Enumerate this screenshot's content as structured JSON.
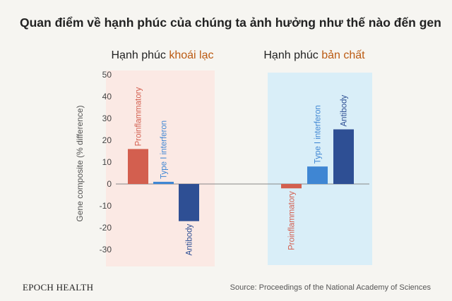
{
  "title": "Quan điểm về hạnh phúc của chúng ta ảnh hưởng như thế nào đến gen",
  "colors": {
    "proinflammatory": "#d35f4f",
    "type_i_interferon": "#3f86d3",
    "antibody": "#2e4f94",
    "hedonic_accent": "#bb5a12",
    "panel_hedonic": "#fbe9e4",
    "panel_eudaimonic": "#d9eef8"
  },
  "chart_data": {
    "type": "bar",
    "ylabel": "Gene composite (% difference)",
    "ylim": [
      -35,
      50
    ],
    "yticks": [
      50,
      40,
      30,
      20,
      10,
      0,
      -10,
      -20,
      -30
    ],
    "grid": false,
    "groups": [
      {
        "label_prefix": "Hạnh phúc",
        "label_accent": "khoái lạc",
        "panel": "hedonic",
        "bars": [
          {
            "name": "Proinflammatory",
            "value": 16,
            "color_key": "proinflammatory"
          },
          {
            "name": "Type I interferon",
            "value": 1,
            "color_key": "type_i_interferon"
          },
          {
            "name": "Antibody",
            "value": -17,
            "color_key": "antibody"
          }
        ]
      },
      {
        "label_prefix": "Hạnh phúc",
        "label_accent": "bản chất",
        "panel": "eudaimonic",
        "bars": [
          {
            "name": "Proinflammatory",
            "value": -2,
            "color_key": "proinflammatory"
          },
          {
            "name": "Type I interferon",
            "value": 8,
            "color_key": "type_i_interferon"
          },
          {
            "name": "Antibody",
            "value": 25,
            "color_key": "antibody"
          }
        ]
      }
    ]
  },
  "footer": {
    "brand": "EPOCH HEALTH",
    "source": "Source: Proceedings of the National  Academy of Sciences"
  }
}
